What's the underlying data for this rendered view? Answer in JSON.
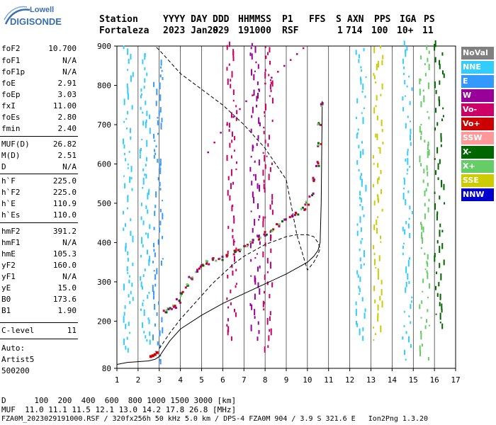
{
  "logo": {
    "line1": "Lowell",
    "line2": "DIGISONDE"
  },
  "header": {
    "labels": [
      "Station",
      "YYYY DAY",
      "DDD",
      "HHMMSS",
      "P1",
      "FFS",
      "S",
      "AXN",
      "PPS",
      "IGA",
      "PS"
    ],
    "values": [
      "Fortaleza",
      "2023 Jan29",
      "029",
      "191000",
      "RSF",
      "1",
      "714",
      "100",
      "10+",
      "11"
    ]
  },
  "params": [
    {
      "k": "foF2",
      "v": "10.700"
    },
    {
      "k": "foF1",
      "v": "N/A"
    },
    {
      "k": "foF1p",
      "v": "N/A"
    },
    {
      "k": "foE",
      "v": "2.91"
    },
    {
      "k": "foEp",
      "v": "3.03"
    },
    {
      "k": "fxI",
      "v": "11.00"
    },
    {
      "k": "foEs",
      "v": "2.80"
    },
    {
      "k": "fmin",
      "v": "2.40"
    },
    {
      "k": "MUF(D)",
      "v": "26.82"
    },
    {
      "k": "M(D)",
      "v": "2.51"
    },
    {
      "k": "D",
      "v": "N/A"
    },
    {
      "k": "h`F",
      "v": "225.0"
    },
    {
      "k": "h`F2",
      "v": "225.0"
    },
    {
      "k": "h`E",
      "v": "110.9"
    },
    {
      "k": "h`Es",
      "v": "110.0"
    },
    {
      "k": "hmF2",
      "v": "391.2"
    },
    {
      "k": "hmF1",
      "v": "N/A"
    },
    {
      "k": "hmE",
      "v": "105.3"
    },
    {
      "k": "yF2",
      "v": "160.0"
    },
    {
      "k": "yF1",
      "v": "N/A"
    },
    {
      "k": "yE",
      "v": "15.0"
    },
    {
      "k": "B0",
      "v": "173.6"
    },
    {
      "k": "B1",
      "v": "1.90"
    },
    {
      "k": "C-level",
      "v": "11"
    }
  ],
  "auto": {
    "line1": "Auto:",
    "line2": "Artist5",
    "line3": "500200"
  },
  "legend": [
    {
      "label": "NoVal",
      "color": "#808080"
    },
    {
      "label": "NNE",
      "color": "#33ccff"
    },
    {
      "label": "E",
      "color": "#3399ff"
    },
    {
      "label": "W",
      "color": "#990099"
    },
    {
      "label": "Vo-",
      "color": "#cc0066"
    },
    {
      "label": "Vo+",
      "color": "#cc0000"
    },
    {
      "label": "SSW",
      "color": "#ff9999"
    },
    {
      "label": "X-",
      "color": "#006600"
    },
    {
      "label": "X+",
      "color": "#66cc66"
    },
    {
      "label": "SSE",
      "color": "#cccc00"
    },
    {
      "label": "NNW",
      "color": "#0000cc"
    }
  ],
  "footer": {
    "line1": "D      100  200  400  600  800 1000 1500 3000 [km]",
    "line2": "MUF  11.0 11.1 11.5 12.1 13.0 14.2 17.8 26.8 [MHz]",
    "line3": "FZA0M_2023029191000.RSF / 320fx256h 50 kHz 5.0 km / DPS-4 FZA0M 904 / 3.9 S 321.6 E   Ion2Png 1.3.20"
  },
  "chart_data": {
    "type": "scatter",
    "title": "",
    "xlabel": "",
    "ylabel": "",
    "xlim": [
      1,
      17
    ],
    "ylim": [
      80,
      900
    ],
    "x_ticks": [
      1,
      2,
      3,
      4,
      5,
      6,
      7,
      8,
      9,
      10,
      11,
      12,
      13,
      14,
      15,
      16,
      17
    ],
    "y_ticks": [
      80,
      200,
      300,
      400,
      500,
      600,
      700,
      800,
      900
    ],
    "trace_f2": {
      "name": "",
      "x": [
        3.3,
        3.5,
        3.7,
        3.9,
        4.1,
        4.3,
        4.5,
        4.8,
        5.0,
        5.3,
        5.6,
        5.9,
        6.2,
        6.5,
        6.8,
        7.1,
        7.4,
        7.7,
        8.0,
        8.3,
        8.6,
        8.9,
        9.2,
        9.5,
        9.8,
        10.0,
        10.2,
        10.35,
        10.45,
        10.55,
        10.6,
        10.65
      ],
      "y": [
        225,
        228,
        238,
        252,
        270,
        290,
        310,
        330,
        340,
        350,
        355,
        360,
        368,
        375,
        382,
        392,
        402,
        412,
        422,
        432,
        442,
        455,
        465,
        475,
        485,
        500,
        520,
        560,
        600,
        650,
        700,
        750
      ]
    },
    "trace_es": {
      "x": [
        2.6,
        2.7,
        2.8,
        2.9
      ],
      "y": [
        110,
        112,
        115,
        120
      ]
    },
    "trace_oblique": {
      "x": [
        5.3,
        5.6,
        5.9,
        6.2,
        6.5,
        6.8,
        7.1,
        7.4,
        7.7,
        8.0,
        8.3,
        8.6,
        8.9,
        9.2,
        9.5,
        9.8
      ],
      "y": [
        630,
        655,
        680,
        700,
        720,
        740,
        760,
        775,
        790,
        805,
        820,
        835,
        850,
        865,
        880,
        895
      ]
    },
    "model_profile": {
      "x": [
        1.0,
        1.5,
        2.0,
        2.5,
        2.8,
        3.0,
        3.5,
        4.0,
        5.0,
        6.0,
        7.0,
        8.0,
        9.0,
        9.5,
        10.0,
        10.3,
        10.5,
        10.6,
        10.65,
        10.7
      ],
      "y": [
        90,
        95,
        97,
        99,
        103,
        110,
        150,
        180,
        215,
        245,
        270,
        295,
        320,
        335,
        350,
        365,
        380,
        400,
        500,
        760
      ]
    },
    "dashed_profile": {
      "x": [
        3.0,
        3.5,
        4.0,
        4.5,
        5.0,
        5.5,
        6.0,
        6.5,
        7.0,
        7.5,
        8.0,
        8.5,
        9.0,
        9.5,
        10.0,
        10.3,
        10.5,
        10.6,
        10.5,
        10.3,
        10.0,
        9.5,
        9.0,
        8.0,
        7.0,
        6.0,
        5.0,
        4.0,
        3.5,
        3.0,
        2.8
      ],
      "y": [
        130,
        170,
        205,
        235,
        265,
        295,
        320,
        345,
        365,
        380,
        395,
        405,
        415,
        420,
        420,
        415,
        400,
        385,
        370,
        350,
        330,
        420,
        560,
        640,
        700,
        750,
        790,
        830,
        860,
        890,
        900
      ]
    },
    "columns": [
      {
        "x": 1.5,
        "y_from": 120,
        "y_to": 900,
        "color": "#33ccff"
      },
      {
        "x": 2.3,
        "y_from": 140,
        "y_to": 880,
        "color": "#33ccff"
      },
      {
        "x": 2.9,
        "y_from": 90,
        "y_to": 860,
        "color": "#3399ff"
      },
      {
        "x": 6.4,
        "y_from": 150,
        "y_to": 900,
        "color": "#cc0066"
      },
      {
        "x": 7.5,
        "y_from": 150,
        "y_to": 900,
        "color": "#990099"
      },
      {
        "x": 8.1,
        "y_from": 120,
        "y_to": 900,
        "color": "#cc0066"
      },
      {
        "x": 12.5,
        "y_from": 150,
        "y_to": 900,
        "color": "#33ccff"
      },
      {
        "x": 13.3,
        "y_from": 150,
        "y_to": 900,
        "color": "#cccc00"
      },
      {
        "x": 14.7,
        "y_from": 100,
        "y_to": 900,
        "color": "#33ccff"
      },
      {
        "x": 15.5,
        "y_from": 100,
        "y_to": 900,
        "color": "#66cc66"
      },
      {
        "x": 16.2,
        "y_from": 180,
        "y_to": 900,
        "color": "#006600"
      }
    ]
  }
}
